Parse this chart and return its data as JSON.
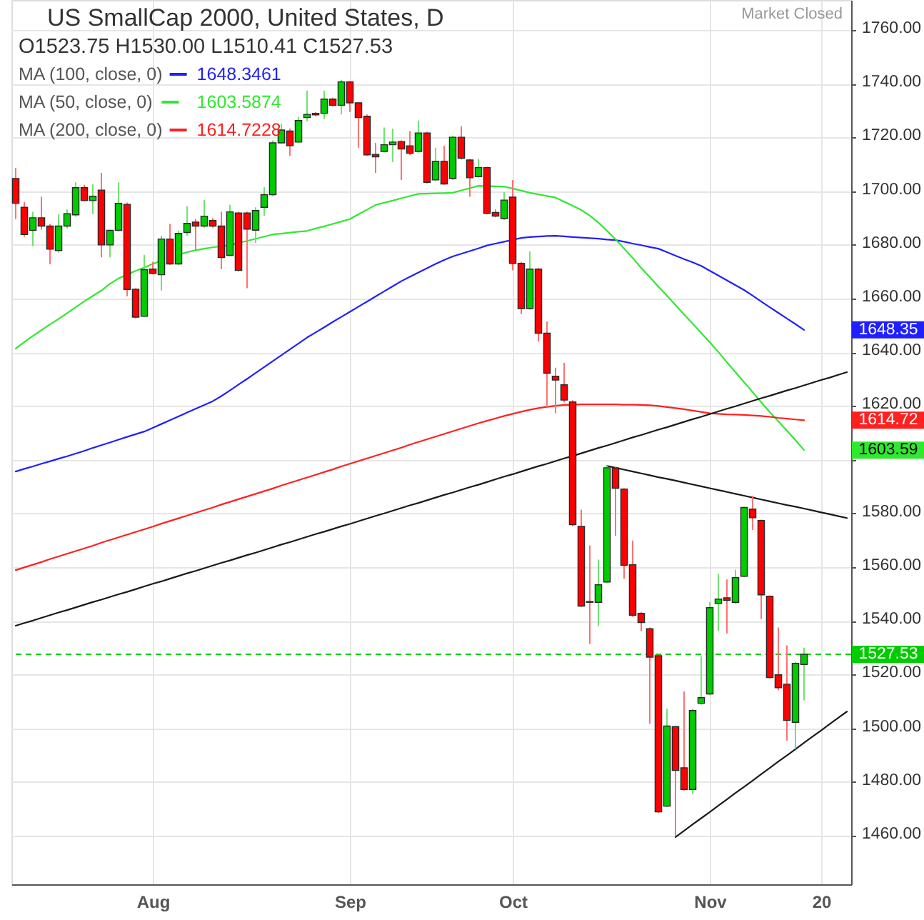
{
  "chart_data": {
    "type": "candlestick",
    "title": "US SmallCap 2000, United States, D",
    "subtitle": "O1523.75 H1530.00 L1510.41 C1527.53",
    "annotations": [
      "Market Closed",
      "1648.3461",
      "1603.5874",
      "1614.7228",
      "1648.35",
      "1603.59",
      "1614.72"
    ],
    "categories": [
      null,
      null,
      null,
      null,
      null,
      null,
      null,
      null,
      null,
      null,
      null,
      null,
      null,
      null,
      null,
      null,
      "Aug",
      null,
      null,
      null,
      null,
      null,
      null,
      null,
      null,
      null,
      null,
      null,
      null,
      null,
      null,
      null,
      null,
      null,
      null,
      null,
      null,
      null,
      null,
      "Sep",
      null,
      null,
      null,
      null,
      null,
      null,
      null,
      null,
      null,
      null,
      null,
      null,
      null,
      null,
      null,
      null,
      null,
      null,
      "Oct",
      null,
      null,
      null,
      null,
      null,
      null,
      null,
      null,
      null,
      null,
      null,
      null,
      null,
      null,
      null,
      null,
      null,
      null,
      null,
      null,
      null,
      null,
      "Nov",
      null,
      null,
      null,
      null,
      null,
      null,
      null,
      null,
      null,
      null,
      null,
      null,
      "20",
      null,
      null,
      null
    ],
    "ohlc": [
      [
        1704.7,
        1708.6,
        1689.6,
        1695.5
      ],
      [
        1694.0,
        1696.0,
        1683.0,
        1683.9
      ],
      [
        1685.4,
        1692.3,
        1679.5,
        1690.1
      ],
      [
        1690.1,
        1697.9,
        1685.7,
        1687.0
      ],
      [
        1687.0,
        1687.8,
        1672.8,
        1678.4
      ],
      [
        1677.9,
        1691.4,
        1677.2,
        1687.0
      ],
      [
        1687.0,
        1693.2,
        1686.1,
        1691.6
      ],
      [
        1691.2,
        1703.3,
        1690.5,
        1701.3
      ],
      [
        1701.3,
        1702.4,
        1696.2,
        1696.5
      ],
      [
        1696.5,
        1702.6,
        1691.4,
        1698.1
      ],
      [
        1700.4,
        1706.8,
        1675.4,
        1680.0
      ],
      [
        1680.0,
        1685.7,
        1675.4,
        1685.4
      ],
      [
        1685.4,
        1703.3,
        1685.0,
        1695.5
      ],
      [
        1695.1,
        1695.8,
        1660.9,
        1663.4
      ],
      [
        1663.5,
        1663.9,
        1652.7,
        1653.1
      ],
      [
        1653.4,
        1676.3,
        1653.1,
        1670.8
      ],
      [
        1671.0,
        1673.7,
        1669.0,
        1669.4
      ],
      [
        1668.9,
        1683.4,
        1663.0,
        1682.2
      ],
      [
        1682.2,
        1687.8,
        1672.6,
        1672.9
      ],
      [
        1672.9,
        1685.2,
        1672.6,
        1684.3
      ],
      [
        1684.6,
        1694.4,
        1683.4,
        1688.0
      ],
      [
        1688.5,
        1689.6,
        1678.1,
        1687.0
      ],
      [
        1687.0,
        1696.7,
        1686.4,
        1690.7
      ],
      [
        1689.1,
        1690.0,
        1686.4,
        1687.0
      ],
      [
        1687.0,
        1692.3,
        1671.0,
        1675.3
      ],
      [
        1676.1,
        1694.9,
        1675.8,
        1692.3
      ],
      [
        1691.9,
        1692.3,
        1670.1,
        1670.5
      ],
      [
        1691.9,
        1692.3,
        1663.9,
        1685.9
      ],
      [
        1685.5,
        1694.0,
        1680.7,
        1692.8
      ],
      [
        1694.0,
        1701.5,
        1690.9,
        1698.7
      ],
      [
        1698.7,
        1718.9,
        1698.1,
        1718.0
      ],
      [
        1718.0,
        1725.1,
        1717.6,
        1722.8
      ],
      [
        1722.4,
        1723.3,
        1713.2,
        1716.9
      ],
      [
        1718.3,
        1727.7,
        1718.0,
        1726.3
      ],
      [
        1727.4,
        1737.5,
        1726.0,
        1728.6
      ],
      [
        1729.0,
        1729.5,
        1727.9,
        1728.4
      ],
      [
        1729.0,
        1737.5,
        1726.9,
        1734.3
      ],
      [
        1734.3,
        1734.8,
        1731.6,
        1732.0
      ],
      [
        1732.0,
        1741.5,
        1728.6,
        1740.7
      ],
      [
        1740.7,
        1741.0,
        1729.5,
        1732.9
      ],
      [
        1732.9,
        1733.2,
        1716.2,
        1727.4
      ],
      [
        1727.9,
        1728.6,
        1713.2,
        1713.5
      ],
      [
        1713.7,
        1718.0,
        1706.8,
        1712.8
      ],
      [
        1714.8,
        1723.7,
        1714.4,
        1717.3
      ],
      [
        1717.3,
        1723.3,
        1710.9,
        1718.3
      ],
      [
        1718.5,
        1718.9,
        1704.2,
        1715.7
      ],
      [
        1716.9,
        1722.4,
        1713.5,
        1714.1
      ],
      [
        1714.8,
        1726.3,
        1714.4,
        1721.7
      ],
      [
        1721.7,
        1722.1,
        1702.9,
        1703.3
      ],
      [
        1704.2,
        1716.2,
        1703.8,
        1711.1
      ],
      [
        1711.1,
        1716.9,
        1702.4,
        1702.7
      ],
      [
        1704.7,
        1720.6,
        1704.2,
        1720.1
      ],
      [
        1720.1,
        1724.2,
        1711.8,
        1712.3
      ],
      [
        1711.6,
        1712.0,
        1697.9,
        1705.0
      ],
      [
        1705.4,
        1712.0,
        1705.0,
        1708.8
      ],
      [
        1708.8,
        1709.1,
        1691.4,
        1691.7
      ],
      [
        1692.1,
        1693.2,
        1690.3,
        1690.7
      ],
      [
        1689.8,
        1699.7,
        1689.3,
        1696.7
      ],
      [
        1697.8,
        1704.2,
        1670.5,
        1673.1
      ],
      [
        1673.1,
        1673.7,
        1654.2,
        1656.3
      ],
      [
        1656.3,
        1677.6,
        1655.9,
        1671.0
      ],
      [
        1671.0,
        1671.4,
        1644.0,
        1647.1
      ],
      [
        1647.1,
        1651.5,
        1619.6,
        1632.2
      ],
      [
        1631.1,
        1634.3,
        1617.3,
        1629.7
      ],
      [
        1627.9,
        1636.1,
        1621.3,
        1622.2
      ],
      [
        1621.5,
        1622.2,
        1575.2,
        1575.8
      ],
      [
        1575.2,
        1581.4,
        1545.1,
        1545.5
      ],
      [
        1547.2,
        1568.1,
        1531.4,
        1546.9
      ],
      [
        1546.9,
        1562.8,
        1538.0,
        1553.4
      ],
      [
        1554.5,
        1597.9,
        1554.0,
        1597.0
      ],
      [
        1596.9,
        1597.4,
        1571.7,
        1589.4
      ],
      [
        1589.1,
        1589.4,
        1555.7,
        1560.7
      ],
      [
        1560.9,
        1569.9,
        1541.5,
        1542.1
      ],
      [
        1542.8,
        1543.3,
        1536.2,
        1539.4
      ],
      [
        1537.1,
        1537.5,
        1501.7,
        1526.5
      ],
      [
        1527.0,
        1527.4,
        1468.5,
        1468.9
      ],
      [
        1471.0,
        1507.3,
        1470.6,
        1500.8
      ],
      [
        1500.6,
        1500.8,
        1460.0,
        1484.3
      ],
      [
        1485.3,
        1513.7,
        1476.8,
        1477.2
      ],
      [
        1477.2,
        1507.3,
        1475.4,
        1506.6
      ],
      [
        1509.3,
        1526.8,
        1508.8,
        1511.4
      ],
      [
        1512.8,
        1547.0,
        1512.3,
        1544.9
      ],
      [
        1546.5,
        1557.5,
        1536.2,
        1548.1
      ],
      [
        1548.6,
        1555.4,
        1535.3,
        1547.6
      ],
      [
        1546.9,
        1559.1,
        1546.3,
        1556.1
      ],
      [
        1556.6,
        1582.5,
        1556.3,
        1582.2
      ],
      [
        1581.6,
        1586.6,
        1573.8,
        1578.4
      ],
      [
        1577.4,
        1577.7,
        1540.7,
        1549.7
      ],
      [
        1549.2,
        1549.5,
        1518.5,
        1518.9
      ],
      [
        1519.9,
        1537.5,
        1514.1,
        1515.1
      ],
      [
        1516.4,
        1530.9,
        1495.4,
        1502.9
      ],
      [
        1502.2,
        1524.7,
        1492.4,
        1524.2
      ],
      [
        1523.75,
        1530.0,
        1510.41,
        1527.53
      ],
      null,
      null,
      null,
      null,
      null
    ],
    "colors": [
      "#ff0000",
      "#ff0000",
      "#00cc00",
      "#ff0000",
      "#ff0000",
      "#00cc00",
      "#00cc00",
      "#00cc00",
      "#ff0000",
      "#00cc00",
      "#ff0000",
      "#00cc00",
      "#00cc00",
      "#ff0000",
      "#ff0000",
      "#00cc00",
      "#ff0000",
      "#00cc00",
      "#ff0000",
      "#00cc00",
      "#00cc00",
      "#ff0000",
      "#00cc00",
      "#ff0000",
      "#ff0000",
      "#00cc00",
      "#ff0000",
      "#ff0000",
      "#00cc00",
      "#00cc00",
      "#00cc00",
      "#00cc00",
      "#ff0000",
      "#00cc00",
      "#00cc00",
      "#ff0000",
      "#00cc00",
      "#ff0000",
      "#00cc00",
      "#ff0000",
      "#ff0000",
      "#ff0000",
      "#ff0000",
      "#00cc00",
      "#00cc00",
      "#ff0000",
      "#ff0000",
      "#00cc00",
      "#ff0000",
      "#00cc00",
      "#ff0000",
      "#00cc00",
      "#ff0000",
      "#ff0000",
      "#00cc00",
      "#ff0000",
      "#ff0000",
      "#00cc00",
      "#ff0000",
      "#ff0000",
      "#00cc00",
      "#ff0000",
      "#ff0000",
      "#ff0000",
      "#ff0000",
      "#ff0000",
      "#ff0000",
      "#ff0000",
      "#00cc00",
      "#00cc00",
      "#ff0000",
      "#ff0000",
      "#ff0000",
      "#ff0000",
      "#ff0000",
      "#ff0000",
      "#00cc00",
      "#ff0000",
      "#ff0000",
      "#00cc00",
      "#00cc00",
      "#00cc00",
      "#00cc00",
      "#ff0000",
      "#00cc00",
      "#00cc00",
      "#ff0000",
      "#ff0000",
      "#ff0000",
      "#ff0000",
      "#ff0000",
      "#00cc00",
      "#00cc00",
      null,
      null,
      null,
      null,
      null
    ],
    "series": [
      {
        "type": "line",
        "name": "MA (100, close, 0)",
        "color": "#2020ff",
        "values": [
          1595.6,
          1596.6,
          1597.5,
          1598.5,
          1599.4,
          1600.4,
          1601.3,
          1602.3,
          1603.3,
          1604.4,
          1605.4,
          1606.4,
          1607.5,
          1608.5,
          1609.5,
          1610.5,
          1611.9,
          1613.3,
          1614.7,
          1616.1,
          1617.6,
          1619.0,
          1620.4,
          1621.8,
          1623.7,
          1625.8,
          1628.0,
          1630.1,
          1632.3,
          1634.5,
          1636.7,
          1638.9,
          1641.1,
          1643.3,
          1645.5,
          1647.4,
          1649.3,
          1651.3,
          1653.2,
          1655.1,
          1657.0,
          1658.9,
          1660.8,
          1662.7,
          1664.6,
          1666.5,
          1668.1,
          1669.7,
          1671.3,
          1672.9,
          1674.4,
          1675.7,
          1676.7,
          1677.7,
          1678.7,
          1679.8,
          1680.5,
          1681.2,
          1681.9,
          1682.6,
          1682.9,
          1683.1,
          1683.3,
          1683.4,
          1683.2,
          1682.9,
          1682.7,
          1682.5,
          1682.3,
          1682.0,
          1681.8,
          1681.2,
          1680.5,
          1679.9,
          1679.2,
          1678.6,
          1677.3,
          1676.0,
          1674.7,
          1673.5,
          1672.2,
          1670.4,
          1668.6,
          1666.8,
          1665.0,
          1663.2,
          1661.1,
          1658.9,
          1656.8,
          1654.7,
          1652.6,
          1650.5,
          1648.35,
          null,
          null,
          null,
          null,
          null
        ]
      },
      {
        "type": "line",
        "name": "MA (50, close, 0)",
        "color": "#30e830",
        "values": [
          1641.4,
          1643.8,
          1646.1,
          1648.3,
          1650.4,
          1652.4,
          1654.6,
          1656.8,
          1659.0,
          1661.0,
          1663.0,
          1665.5,
          1667.5,
          1669.0,
          1670.3,
          1671.6,
          1672.9,
          1674.2,
          null,
          1676.4,
          1677.3,
          1678.0,
          1678.6,
          1679.1,
          1679.5,
          1679.9,
          1680.7,
          1681.5,
          1682.3,
          1683.1,
          1683.9,
          1684.2,
          1684.6,
          1684.9,
          1685.2,
          1686.1,
          1686.9,
          1687.8,
          1688.7,
          1689.6,
          1691.4,
          1693.1,
          1694.9,
          1695.7,
          1696.5,
          1697.4,
          1698.2,
          1699.0,
          1699.1,
          1699.2,
          1699.3,
          1699.4,
          1700.3,
          1701.1,
          1702.0,
          1701.9,
          1701.8,
          1701.7,
          1701.0,
          1700.2,
          1699.4,
          1698.8,
          1698.2,
          1697.6,
          1696.1,
          1694.6,
          1693.0,
          1690.9,
          1688.3,
          1685.3,
          1682.1,
          1678.6,
          1675.2,
          1671.4,
          1668.0,
          1664.5,
          1661.1,
          1657.6,
          1654.1,
          1650.7,
          1647.2,
          1643.8,
          1640.1,
          1636.3,
          1632.6,
          1628.9,
          1625.2,
          1621.4,
          1617.7,
          1614.3,
          1610.8,
          1607.3,
          1603.59,
          null,
          null,
          null,
          null,
          null
        ]
      },
      {
        "type": "line",
        "name": "MA (200, close, 0)",
        "color": "#ff2020",
        "values": [
          1558.9,
          1559.9,
          1560.9,
          1561.9,
          1563.0,
          1564.0,
          1565.0,
          1566.0,
          1567.0,
          1568.0,
          1569.1,
          1570.1,
          1571.1,
          1572.1,
          1573.1,
          1574.1,
          1575.1,
          1576.2,
          1577.2,
          1578.2,
          1579.2,
          1580.2,
          1581.2,
          1582.2,
          1583.3,
          1584.3,
          1585.3,
          1586.3,
          1587.3,
          1588.3,
          1589.3,
          1590.4,
          1591.4,
          1592.4,
          1593.4,
          1594.4,
          1595.4,
          1596.4,
          1597.5,
          1598.5,
          1599.5,
          1600.5,
          1601.5,
          1602.5,
          1603.5,
          1604.5,
          1605.6,
          1606.6,
          1607.6,
          1608.6,
          1609.6,
          1610.6,
          1611.6,
          1612.6,
          1613.6,
          1614.5,
          1615.4,
          1616.3,
          1617.1,
          1617.9,
          1618.6,
          1619.2,
          1619.7,
          1620.1,
          1620.4,
          1620.5,
          1620.6,
          1620.6,
          1620.6,
          1620.6,
          1620.6,
          1620.5,
          1620.5,
          1620.4,
          1620.3,
          1620.0,
          1619.6,
          1619.2,
          1618.8,
          1618.3,
          1617.8,
          1617.3,
          1617.1,
          1616.9,
          1616.8,
          1616.7,
          1616.5,
          1616.3,
          1616.0,
          1615.6,
          1615.3,
          1615.0,
          1614.72,
          null,
          null,
          null,
          null,
          null
        ]
      },
      {
        "type": "line",
        "color": "#1a1a1a",
        "values": [
          1538.2,
          1539.2,
          1540.1,
          1541.1,
          1542.1,
          1543.1,
          1544.0,
          1545.0,
          1546.0,
          1547.0,
          1547.9,
          1548.9,
          1549.9,
          1550.8,
          1551.8,
          1552.8,
          1553.8,
          1554.7,
          1555.7,
          1556.7,
          1557.7,
          1558.6,
          1559.6,
          1560.6,
          1561.6,
          1562.5,
          1563.5,
          1564.5,
          1565.4,
          1566.4,
          1567.4,
          1568.4,
          1569.3,
          1570.3,
          1571.3,
          1572.3,
          1573.2,
          1574.2,
          1575.2,
          1576.1,
          1577.1,
          1578.1,
          1579.1,
          1580.0,
          1581.0,
          1582.0,
          1583.0,
          1583.9,
          1584.9,
          1585.9,
          1586.9,
          1587.8,
          1588.8,
          1589.8,
          1590.7,
          1591.7,
          1592.7,
          1593.7,
          1594.6,
          1595.6,
          1596.6,
          1597.6,
          1598.5,
          1599.5,
          1600.5,
          1601.4,
          1602.4,
          1603.4,
          1604.4,
          1605.3,
          1606.3,
          1607.3,
          1608.3,
          1609.2,
          1610.2,
          1611.2,
          1612.1,
          1613.1,
          1614.1,
          1615.1,
          1616.0,
          1617.0,
          1618.0,
          1619.0,
          1619.9,
          1620.9,
          1621.9,
          1622.9,
          1623.8,
          1624.8,
          1625.8,
          1626.7,
          1627.7,
          1628.7,
          1629.7,
          1630.6,
          1631.6,
          1632.6
        ]
      },
      {
        "type": "line",
        "color": "#1a1a1a",
        "values": [
          null,
          null,
          null,
          null,
          null,
          null,
          null,
          null,
          null,
          null,
          null,
          null,
          null,
          null,
          null,
          null,
          null,
          null,
          null,
          null,
          null,
          null,
          null,
          null,
          null,
          null,
          null,
          null,
          null,
          null,
          null,
          null,
          null,
          null,
          null,
          null,
          null,
          null,
          null,
          null,
          null,
          null,
          null,
          null,
          null,
          null,
          null,
          null,
          null,
          null,
          null,
          null,
          null,
          null,
          null,
          null,
          null,
          null,
          null,
          null,
          null,
          null,
          null,
          null,
          null,
          null,
          null,
          null,
          null,
          1597.7,
          1597.0,
          1596.3,
          1595.6,
          1594.9,
          1594.2,
          1593.5,
          1592.9,
          1592.2,
          1591.5,
          1590.8,
          1590.1,
          1589.4,
          1588.7,
          1588.0,
          1587.3,
          1586.6,
          1585.9,
          1585.2,
          1584.5,
          1583.8,
          1583.1,
          1582.5,
          1581.8,
          1581.1,
          1580.4,
          1579.7,
          1579.0,
          1578.3
        ]
      },
      {
        "type": "line",
        "color": "#1a1a1a",
        "values": [
          null,
          null,
          null,
          null,
          null,
          null,
          null,
          null,
          null,
          null,
          null,
          null,
          null,
          null,
          null,
          null,
          null,
          null,
          null,
          null,
          null,
          null,
          null,
          null,
          null,
          null,
          null,
          null,
          null,
          null,
          null,
          null,
          null,
          null,
          null,
          null,
          null,
          null,
          null,
          null,
          null,
          null,
          null,
          null,
          null,
          null,
          null,
          null,
          null,
          null,
          null,
          null,
          null,
          null,
          null,
          null,
          null,
          null,
          null,
          null,
          null,
          null,
          null,
          null,
          null,
          null,
          null,
          null,
          null,
          null,
          null,
          null,
          null,
          null,
          null,
          null,
          null,
          1459.5,
          1461.8,
          1464.2,
          1466.5,
          1468.8,
          1471.2,
          1473.5,
          1475.9,
          1478.2,
          1480.5,
          1482.9,
          1485.2,
          1487.6,
          1489.9,
          1492.2,
          1494.6,
          1496.9,
          1499.2,
          1501.6,
          1503.9,
          1506.2
        ]
      }
    ],
    "ref_lines": [
      {
        "axis": "y",
        "value": 1527.53,
        "label": "1527.53",
        "color": "#00cc00",
        "line_style": "dashed"
      }
    ],
    "ylim": [
      1441.9,
      1771.2
    ],
    "yticks": [
      {
        "value": 1460,
        "label": "1460.00"
      },
      {
        "value": 1480,
        "label": "1480.00"
      },
      {
        "value": 1500,
        "label": "1500.00"
      },
      {
        "value": 1520,
        "label": "1520.00"
      },
      {
        "value": 1540,
        "label": "1540.00"
      },
      {
        "value": 1560,
        "label": "1560.00"
      },
      {
        "value": 1580,
        "label": "1580.00"
      },
      {
        "value": 1600,
        "label": null
      },
      {
        "value": 1620,
        "label": "1620.00"
      },
      {
        "value": 1640,
        "label": "1640.00"
      },
      {
        "value": 1660,
        "label": "1660.00"
      },
      {
        "value": 1680,
        "label": "1680.00"
      },
      {
        "value": 1700,
        "label": "1700.00"
      },
      {
        "value": 1720,
        "label": "1720.00"
      },
      {
        "value": 1740,
        "label": "1740.00"
      },
      {
        "value": 1760,
        "label": "1760.00"
      }
    ],
    "grid": true,
    "legend": "top left"
  }
}
